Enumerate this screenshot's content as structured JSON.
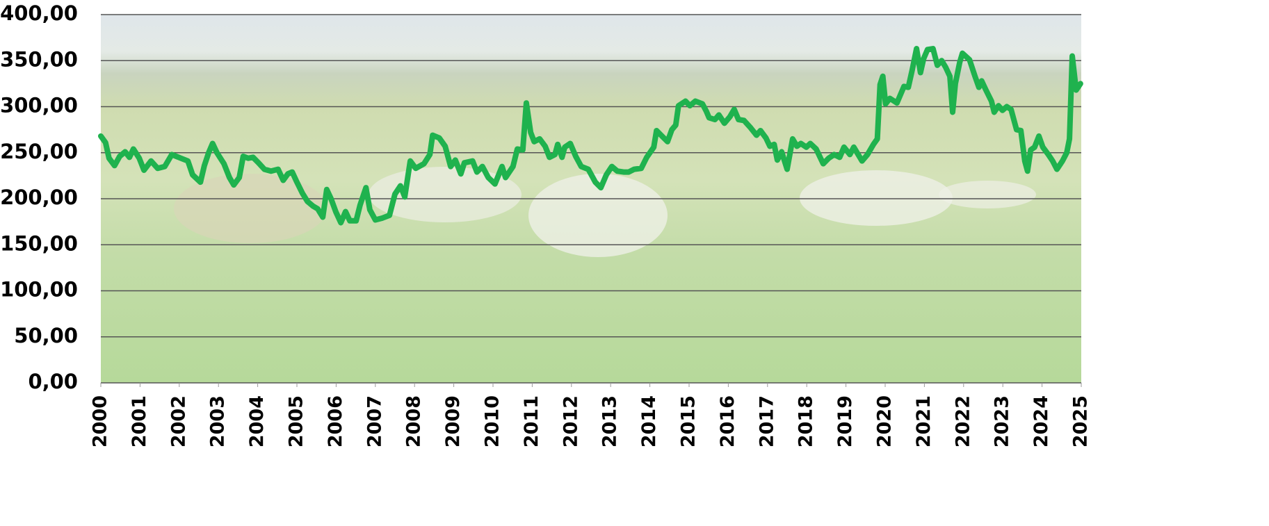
{
  "chart_data": {
    "type": "line",
    "color": "#1fb24e",
    "grid": true,
    "xlim": [
      2000,
      2025
    ],
    "xticks": [
      2000,
      2001,
      2002,
      2003,
      2004,
      2005,
      2006,
      2007,
      2008,
      2009,
      2010,
      2011,
      2012,
      2013,
      2014,
      2015,
      2016,
      2017,
      2018,
      2019,
      2020,
      2021,
      2022,
      2023,
      2024,
      2025
    ],
    "ylim": [
      0,
      400
    ],
    "yticks": [
      {
        "value": 0,
        "label": "0,00"
      },
      {
        "value": 50,
        "label": "50,00"
      },
      {
        "value": 100,
        "label": "100,00"
      },
      {
        "value": 150,
        "label": "150,00"
      },
      {
        "value": 200,
        "label": "200,00"
      },
      {
        "value": 250,
        "label": "250,00"
      },
      {
        "value": 300,
        "label": "300,00"
      },
      {
        "value": 350,
        "label": "350,00"
      },
      {
        "value": 400,
        "label": "400,00"
      }
    ],
    "x": [
      2000.0,
      2000.12,
      2000.21,
      2000.35,
      2000.48,
      2000.62,
      2000.73,
      2000.83,
      2000.98,
      2001.1,
      2001.28,
      2001.45,
      2001.63,
      2001.81,
      2002.04,
      2002.22,
      2002.34,
      2002.54,
      2002.64,
      2002.75,
      2002.85,
      2002.96,
      2003.14,
      2003.28,
      2003.39,
      2003.53,
      2003.63,
      2003.76,
      2003.88,
      2004.02,
      2004.17,
      2004.34,
      2004.52,
      2004.65,
      2004.77,
      2004.88,
      2005.0,
      2005.14,
      2005.27,
      2005.41,
      2005.53,
      2005.66,
      2005.76,
      2005.87,
      2005.99,
      2006.12,
      2006.24,
      2006.35,
      2006.51,
      2006.61,
      2006.76,
      2006.86,
      2007.0,
      2007.18,
      2007.36,
      2007.5,
      2007.64,
      2007.75,
      2007.89,
      2008.03,
      2008.24,
      2008.39,
      2008.46,
      2008.63,
      2008.78,
      2008.92,
      2009.04,
      2009.18,
      2009.27,
      2009.48,
      2009.59,
      2009.73,
      2009.88,
      2010.05,
      2010.23,
      2010.32,
      2010.51,
      2010.62,
      2010.76,
      2010.85,
      2010.96,
      2011.05,
      2011.19,
      2011.33,
      2011.44,
      2011.58,
      2011.65,
      2011.76,
      2011.83,
      2011.97,
      2012.11,
      2012.25,
      2012.43,
      2012.61,
      2012.75,
      2012.89,
      2013.03,
      2013.17,
      2013.33,
      2013.46,
      2013.6,
      2013.78,
      2013.92,
      2014.1,
      2014.17,
      2014.31,
      2014.45,
      2014.56,
      2014.66,
      2014.73,
      2014.91,
      2015.02,
      2015.16,
      2015.34,
      2015.44,
      2015.51,
      2015.66,
      2015.76,
      2015.9,
      2016.04,
      2016.15,
      2016.26,
      2016.4,
      2016.57,
      2016.72,
      2016.82,
      2016.96,
      2017.06,
      2017.17,
      2017.25,
      2017.36,
      2017.5,
      2017.64,
      2017.75,
      2017.85,
      2017.99,
      2018.09,
      2018.24,
      2018.42,
      2018.56,
      2018.7,
      2018.84,
      2018.95,
      2019.1,
      2019.2,
      2019.41,
      2019.55,
      2019.7,
      2019.8,
      2019.87,
      2019.94,
      2020.01,
      2020.12,
      2020.3,
      2020.48,
      2020.59,
      2020.69,
      2020.8,
      2020.9,
      2020.98,
      2021.08,
      2021.22,
      2021.33,
      2021.44,
      2021.54,
      2021.65,
      2021.72,
      2021.79,
      2021.9,
      2021.97,
      2022.15,
      2022.29,
      2022.39,
      2022.46,
      2022.57,
      2022.71,
      2022.78,
      2022.89,
      2022.99,
      2023.1,
      2023.21,
      2023.35,
      2023.46,
      2023.56,
      2023.63,
      2023.71,
      2023.81,
      2023.92,
      2024.02,
      2024.16,
      2024.27,
      2024.38,
      2024.52,
      2024.63,
      2024.7,
      2024.77,
      2024.87,
      2024.98
    ],
    "values": [
      268,
      261,
      244,
      236,
      246,
      251,
      245,
      254,
      244,
      231,
      241,
      233,
      235,
      248,
      244,
      241,
      226,
      218,
      236,
      250,
      260,
      250,
      238,
      223,
      215,
      223,
      246,
      244,
      245,
      239,
      232,
      230,
      232,
      220,
      227,
      229,
      218,
      206,
      197,
      192,
      189,
      180,
      210,
      200,
      186,
      174,
      186,
      176,
      176,
      193,
      212,
      188,
      177,
      179,
      182,
      205,
      214,
      202,
      241,
      233,
      238,
      248,
      269,
      266,
      257,
      235,
      242,
      227,
      239,
      241,
      229,
      235,
      223,
      216,
      235,
      223,
      235,
      254,
      253,
      304,
      272,
      262,
      265,
      257,
      245,
      248,
      259,
      245,
      256,
      260,
      246,
      235,
      232,
      218,
      212,
      226,
      235,
      230,
      229,
      229,
      232,
      233,
      245,
      256,
      274,
      268,
      262,
      275,
      280,
      301,
      306,
      301,
      306,
      303,
      295,
      288,
      286,
      291,
      282,
      289,
      297,
      286,
      285,
      277,
      269,
      274,
      266,
      257,
      259,
      242,
      251,
      232,
      265,
      257,
      260,
      256,
      260,
      254,
      238,
      244,
      248,
      245,
      256,
      248,
      256,
      241,
      248,
      259,
      265,
      324,
      333,
      303,
      309,
      304,
      322,
      321,
      340,
      363,
      337,
      352,
      362,
      363,
      345,
      350,
      343,
      333,
      294,
      325,
      348,
      358,
      351,
      333,
      321,
      328,
      318,
      306,
      294,
      301,
      296,
      300,
      297,
      275,
      274,
      241,
      230,
      253,
      256,
      268,
      256,
      248,
      241,
      232,
      241,
      250,
      265,
      355,
      318,
      325
    ]
  }
}
